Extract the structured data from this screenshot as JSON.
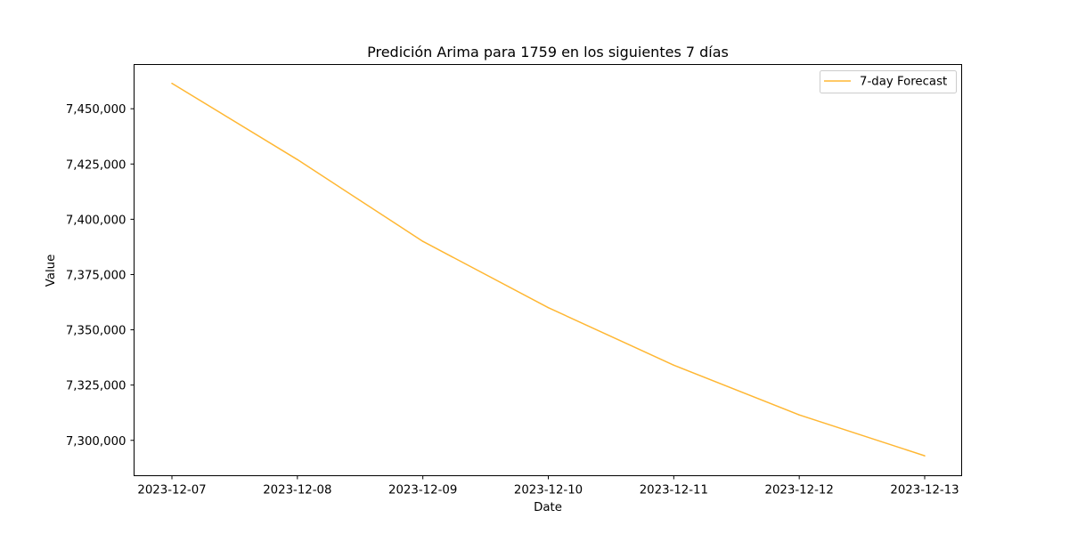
{
  "chart_data": {
    "type": "line",
    "title": "Predición Arima para 1759 en los siguientes 7 días",
    "xlabel": "Date",
    "ylabel": "Value",
    "x": [
      "2023-12-07",
      "2023-12-08",
      "2023-12-09",
      "2023-12-10",
      "2023-12-11",
      "2023-12-12",
      "2023-12-13"
    ],
    "y_tick_labels": [
      "7,300,000",
      "7,325,000",
      "7,350,000",
      "7,375,000",
      "7,400,000",
      "7,425,000",
      "7,450,000"
    ],
    "y_ticks": [
      7300000,
      7325000,
      7350000,
      7375000,
      7400000,
      7425000,
      7450000
    ],
    "ylim": [
      7284000,
      7470000
    ],
    "series": [
      {
        "name": "7-day Forecast",
        "color": "#ffb733",
        "values": [
          7461500,
          7427000,
          7390000,
          7360000,
          7334000,
          7311500,
          7293000
        ]
      }
    ],
    "legend": "top-right",
    "grid": false
  }
}
